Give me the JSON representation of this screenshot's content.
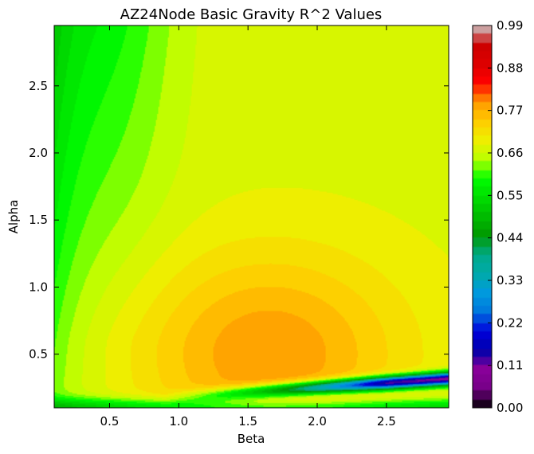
{
  "chart_data": {
    "type": "heatmap",
    "title": "AZ24Node Basic Gravity R^2 Values",
    "xlabel": "Beta",
    "ylabel": "Alpha",
    "xlim": [
      0.1,
      2.95
    ],
    "ylim": [
      0.1,
      2.95
    ],
    "x_ticks": [
      0.5,
      1.0,
      1.5,
      2.0,
      2.5
    ],
    "x_tick_labels": [
      "0.5",
      "1.0",
      "1.5",
      "2.0",
      "2.5"
    ],
    "y_ticks": [
      0.5,
      1.0,
      1.5,
      2.0,
      2.5
    ],
    "y_tick_labels": [
      "0.5",
      "1.0",
      "1.5",
      "2.0",
      "2.5"
    ],
    "colorbar": {
      "min": 0.0,
      "max": 0.99,
      "ticks": [
        0.0,
        0.11,
        0.22,
        0.33,
        0.44,
        0.55,
        0.66,
        0.77,
        0.88,
        0.99
      ],
      "tick_labels": [
        "0.00",
        "0.11",
        "0.22",
        "0.33",
        "0.44",
        "0.55",
        "0.66",
        "0.77",
        "0.88",
        "0.99"
      ],
      "colormap": "nipy_spectral"
    },
    "surface": {
      "peak": {
        "beta": 1.65,
        "alpha": 0.5,
        "value": 0.79
      },
      "far_field_value": 0.675,
      "min_left_edge": {
        "beta": 0.1,
        "alpha": 2.9,
        "value": 0.47
      },
      "trough": {
        "description": "narrow low-value band near alpha 0.1-0.3 rising with beta",
        "min_value": 0.08
      }
    }
  }
}
